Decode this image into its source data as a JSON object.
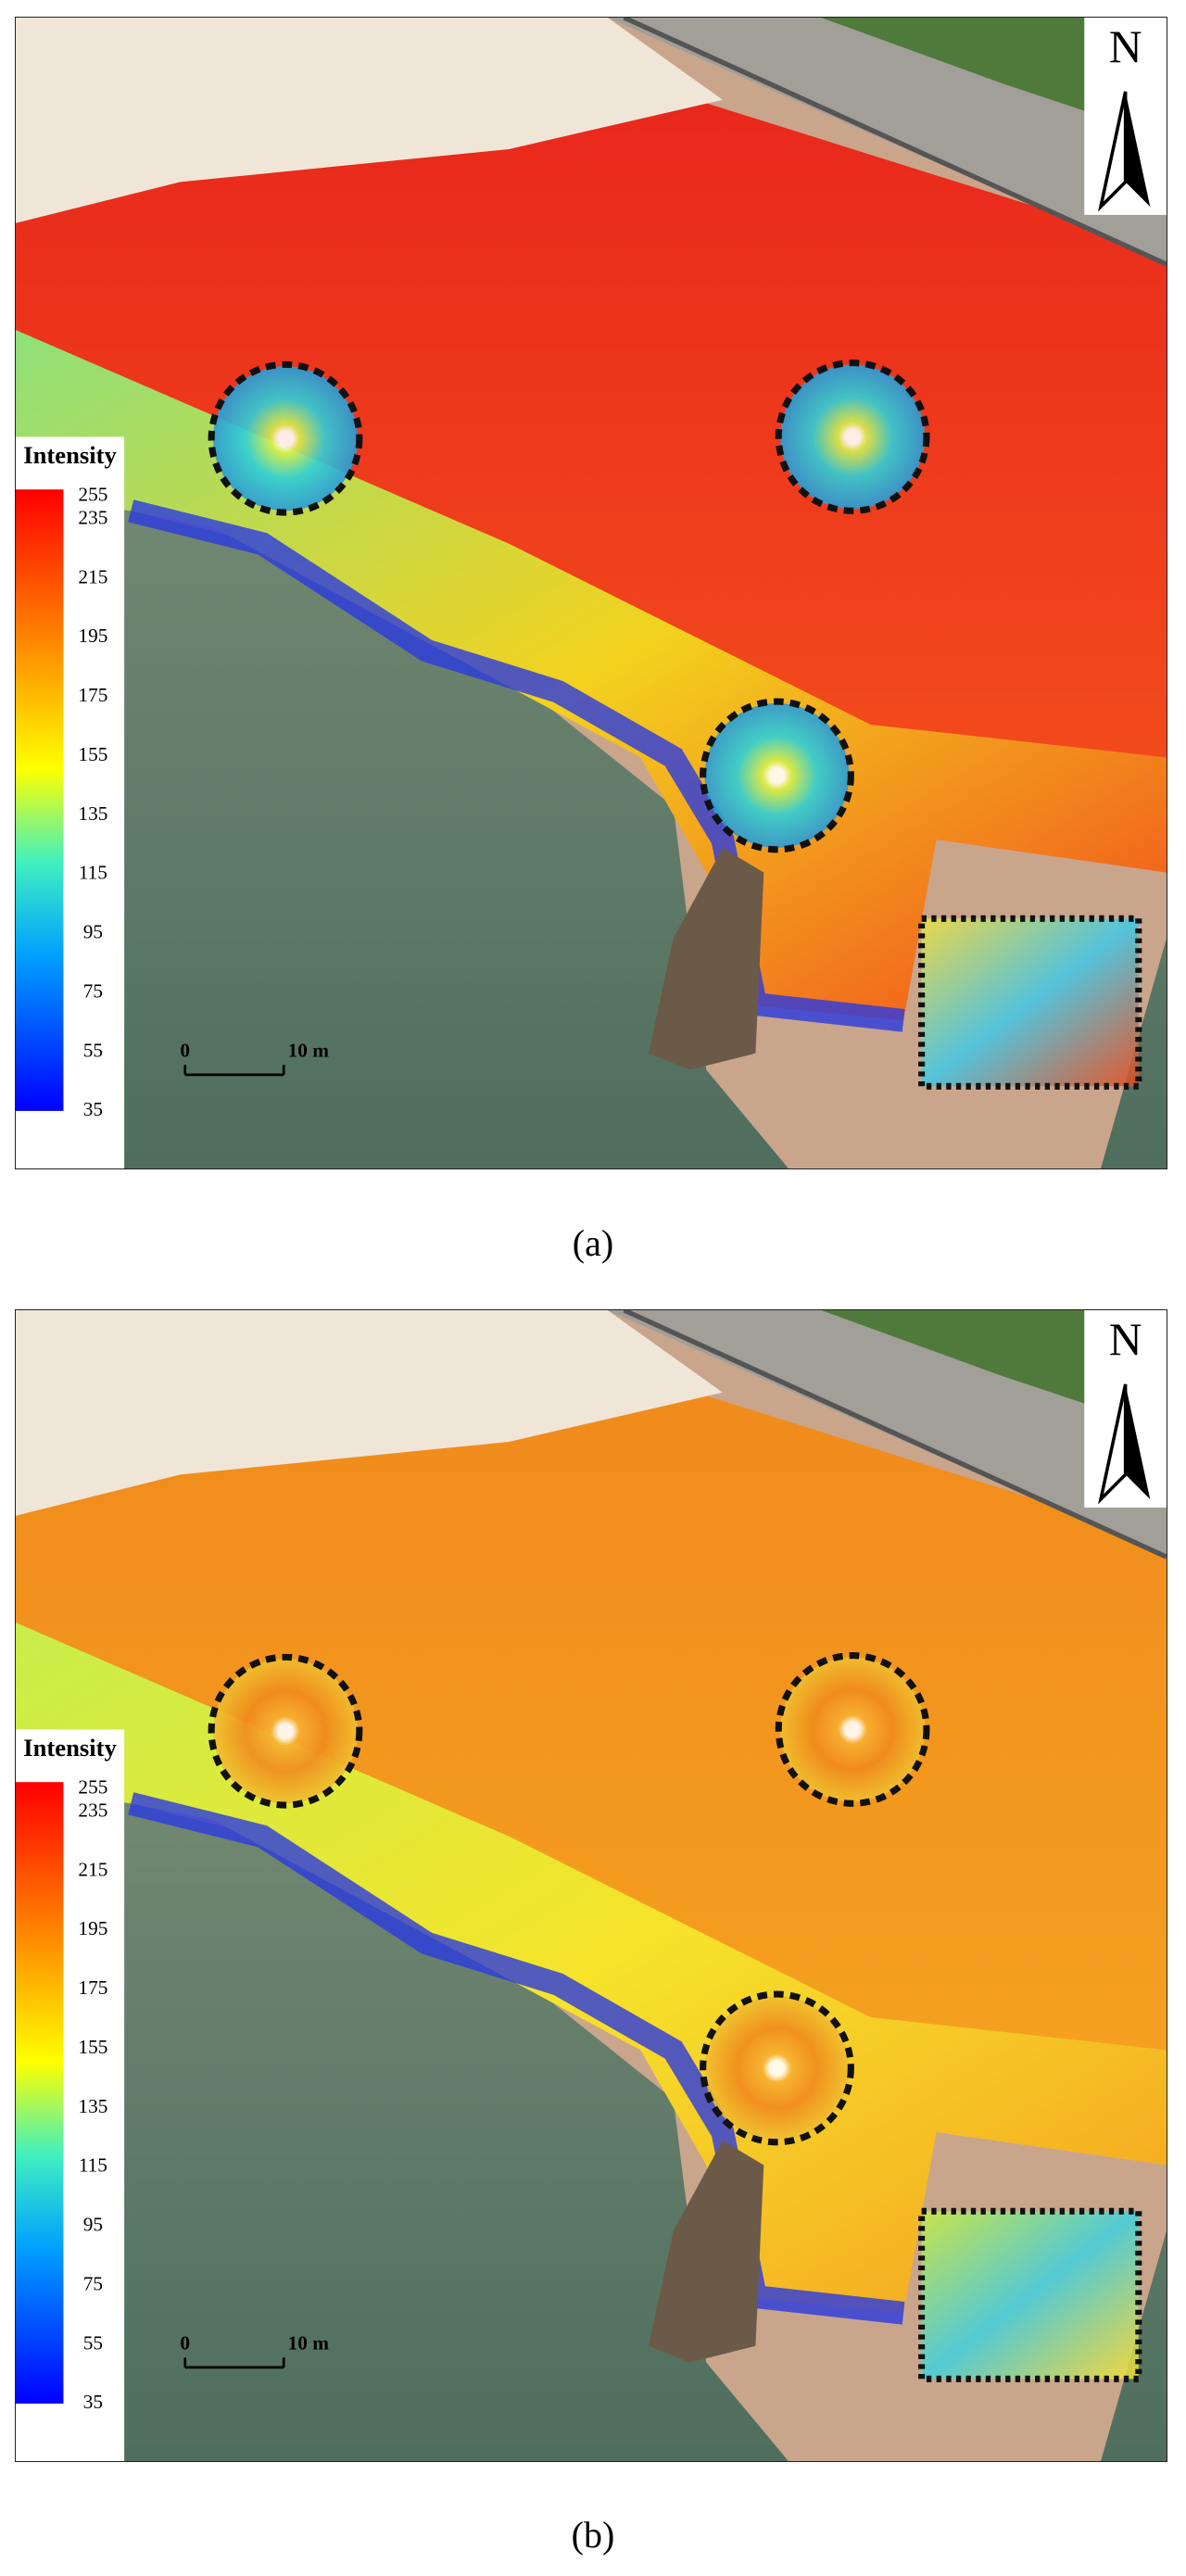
{
  "figure": {
    "panels": [
      {
        "caption": "(a)",
        "north": "N",
        "legend": {
          "title": "Intensity",
          "ticks": [
            255,
            235,
            215,
            195,
            175,
            155,
            135,
            115,
            95,
            75,
            55,
            35
          ]
        },
        "scale_bar": {
          "start": "0",
          "end": "10 m"
        }
      },
      {
        "caption": "(b)",
        "north": "N",
        "legend": {
          "title": "Intensity",
          "ticks": [
            255,
            235,
            215,
            195,
            175,
            155,
            135,
            115,
            95,
            75,
            55,
            35
          ]
        },
        "scale_bar": {
          "start": "0",
          "end": "10 m"
        }
      }
    ]
  }
}
